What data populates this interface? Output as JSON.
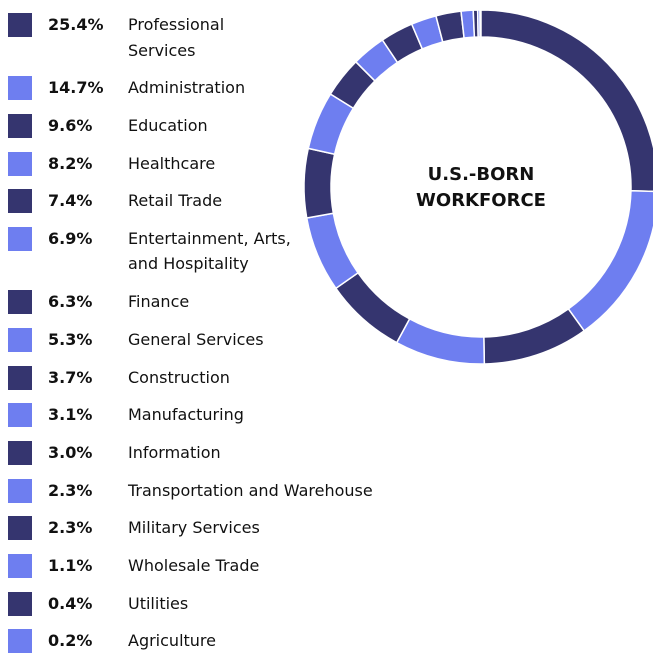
{
  "chart_data": {
    "type": "donut",
    "title": "U.S.-BORN WORKFORCE",
    "categories": [
      "Professional Services",
      "Administration",
      "Education",
      "Healthcare",
      "Retail Trade",
      "Entertainment, Arts, and Hospitality",
      "Finance",
      "General Services",
      "Construction",
      "Manufacturing",
      "Information",
      "Transportation and Warehouse",
      "Military Services",
      "Wholesale Trade",
      "Utilities",
      "Agriculture"
    ],
    "values": [
      25.4,
      14.7,
      9.6,
      8.2,
      7.4,
      6.9,
      6.3,
      5.3,
      3.7,
      3.1,
      3.0,
      2.3,
      2.3,
      1.1,
      0.4,
      0.2
    ],
    "value_labels": [
      "25.4%",
      "14.7%",
      "9.6%",
      "8.2%",
      "7.4%",
      "6.9%",
      "6.3%",
      "5.3%",
      "3.7%",
      "3.1%",
      "3.0%",
      "2.3%",
      "2.3%",
      "1.1%",
      "0.4%",
      "0.2%"
    ],
    "colors": [
      "#35356f",
      "#6e7ef0",
      "#35356f",
      "#6e7ef0",
      "#35356f",
      "#6e7ef0",
      "#35356f",
      "#6e7ef0",
      "#35356f",
      "#6e7ef0",
      "#35356f",
      "#6e7ef0",
      "#35356f",
      "#6e7ef0",
      "#35356f",
      "#6e7ef0"
    ]
  }
}
